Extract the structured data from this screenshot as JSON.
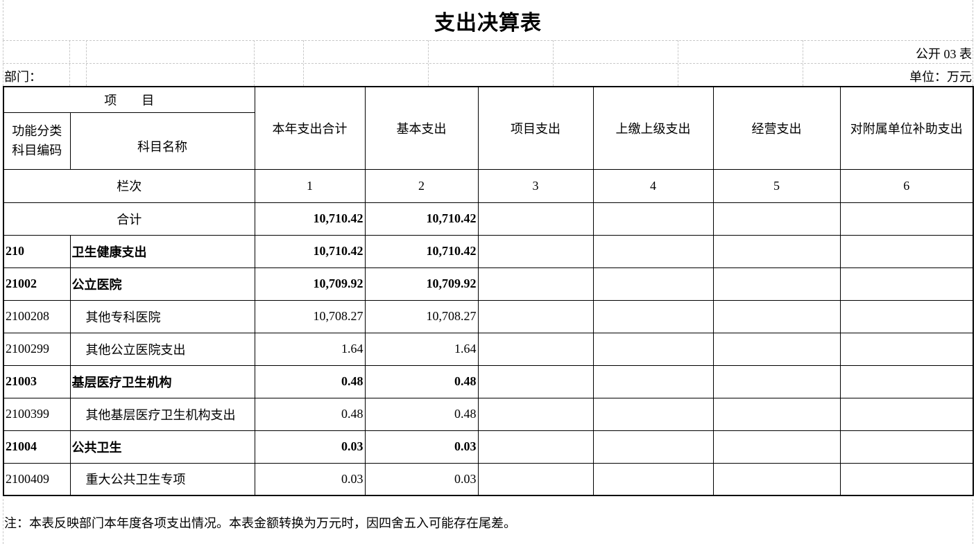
{
  "title": "支出决算表",
  "form_no": "公开 03 表",
  "department_label": "部门：",
  "unit_label": "单位：万元",
  "header": {
    "item": "项　　目",
    "code": "功能分类科目编码",
    "code_line1": "功能分类",
    "code_line2": "科目编码",
    "name": "科目名称",
    "columns": [
      "本年支出合计",
      "基本支出",
      "项目支出",
      "上缴上级支出",
      "经营支出",
      "对附属单位补助支出"
    ],
    "row_index_label": "栏次",
    "column_numbers": [
      "1",
      "2",
      "3",
      "4",
      "5",
      "6"
    ]
  },
  "total": {
    "label": "合计",
    "values": [
      "10,710.42",
      "10,710.42",
      "",
      "",
      "",
      ""
    ]
  },
  "rows": [
    {
      "code": "210",
      "name": "卫生健康支出",
      "bold": true,
      "values": [
        "10,710.42",
        "10,710.42",
        "",
        "",
        "",
        ""
      ]
    },
    {
      "code": "21002",
      "name": "公立医院",
      "bold": true,
      "values": [
        "10,709.92",
        "10,709.92",
        "",
        "",
        "",
        ""
      ]
    },
    {
      "code": "2100208",
      "name": "其他专科医院",
      "bold": false,
      "values": [
        "10,708.27",
        "10,708.27",
        "",
        "",
        "",
        ""
      ]
    },
    {
      "code": "2100299",
      "name": "其他公立医院支出",
      "bold": false,
      "values": [
        "1.64",
        "1.64",
        "",
        "",
        "",
        ""
      ]
    },
    {
      "code": "21003",
      "name": "基层医疗卫生机构",
      "bold": true,
      "values": [
        "0.48",
        "0.48",
        "",
        "",
        "",
        ""
      ]
    },
    {
      "code": "2100399",
      "name": "其他基层医疗卫生机构支出",
      "bold": false,
      "values": [
        "0.48",
        "0.48",
        "",
        "",
        "",
        ""
      ]
    },
    {
      "code": "21004",
      "name": "公共卫生",
      "bold": true,
      "values": [
        "0.03",
        "0.03",
        "",
        "",
        "",
        ""
      ]
    },
    {
      "code": "2100409",
      "name": "重大公共卫生专项",
      "bold": false,
      "values": [
        "0.03",
        "0.03",
        "",
        "",
        "",
        ""
      ]
    }
  ],
  "note": "注：本表反映部门本年度各项支出情况。本表金额转换为万元时，因四舍五入可能存在尾差。"
}
